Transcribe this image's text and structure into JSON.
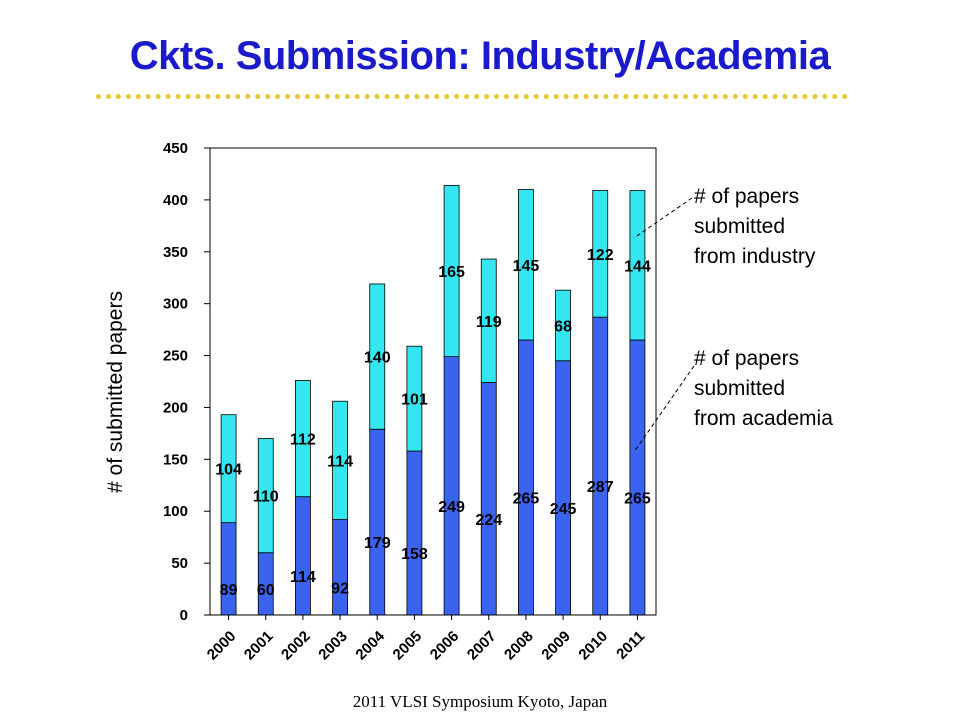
{
  "slide": {
    "title": "Ckts. Submission: Industry/Academia",
    "footer": "2011 VLSI Symposium Kyoto, Japan",
    "notes": {
      "industry": "# of papers\nsubmitted\nfrom industry",
      "academia": "# of papers\nsubmitted\nfrom academia"
    }
  },
  "colors": {
    "title": "#1a1acc",
    "rule": "#e8c832",
    "academia": "#3a63f0",
    "industry": "#33e6f0"
  },
  "chart_data": {
    "type": "bar",
    "stacked": true,
    "title": "",
    "xlabel": "",
    "ylabel": "# of submitted papers",
    "ylim": [
      0,
      450
    ],
    "yticks": [
      0,
      50,
      100,
      150,
      200,
      250,
      300,
      350,
      400,
      450
    ],
    "grid": false,
    "legend": "annotation callouts on right",
    "categories": [
      "2000",
      "2001",
      "2002",
      "2003",
      "2004",
      "2005",
      "2006",
      "2007",
      "2008",
      "2009",
      "2010",
      "2011"
    ],
    "series": [
      {
        "values": [
          89,
          60,
          114,
          92,
          179,
          158,
          249,
          224,
          265,
          245,
          287,
          265
        ]
      },
      {
        "values": [
          104,
          110,
          112,
          114,
          140,
          101,
          165,
          119,
          145,
          68,
          122,
          144
        ]
      }
    ]
  }
}
